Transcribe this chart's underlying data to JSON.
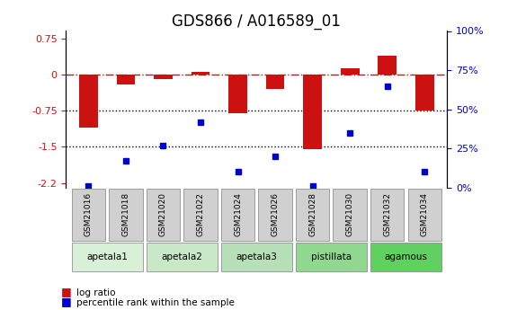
{
  "title": "GDS866 / A016589_01",
  "samples": [
    "GSM21016",
    "GSM21018",
    "GSM21020",
    "GSM21022",
    "GSM21024",
    "GSM21026",
    "GSM21028",
    "GSM21030",
    "GSM21032",
    "GSM21034"
  ],
  "log_ratio": [
    -1.1,
    -0.2,
    -0.1,
    0.05,
    -0.8,
    -0.3,
    -1.55,
    0.12,
    0.38,
    -0.75
  ],
  "percentile_rank": [
    1,
    17,
    27,
    42,
    10,
    20,
    1,
    35,
    65,
    10
  ],
  "groups": [
    {
      "name": "apetala1",
      "indices": [
        0,
        1
      ],
      "color": "#d8f0d8"
    },
    {
      "name": "apetala2",
      "indices": [
        2,
        3
      ],
      "color": "#c8e8c8"
    },
    {
      "name": "apetala3",
      "indices": [
        4,
        5
      ],
      "color": "#b8e0b8"
    },
    {
      "name": "pistillata",
      "indices": [
        6,
        7
      ],
      "color": "#90d890"
    },
    {
      "name": "agamous",
      "indices": [
        8,
        9
      ],
      "color": "#60d060"
    }
  ],
  "ylim_left": [
    -2.35,
    0.9
  ],
  "ylim_right": [
    0,
    100
  ],
  "yticks_left": [
    0.75,
    0,
    -0.75,
    -1.5,
    -2.25
  ],
  "yticks_right": [
    100,
    75,
    50,
    25,
    0
  ],
  "bar_color": "#cc1111",
  "dot_color": "#0000cc",
  "hline_color": "#cc1111",
  "dotted_line_color": "black",
  "title_fontsize": 12,
  "label_fontsize": 8
}
